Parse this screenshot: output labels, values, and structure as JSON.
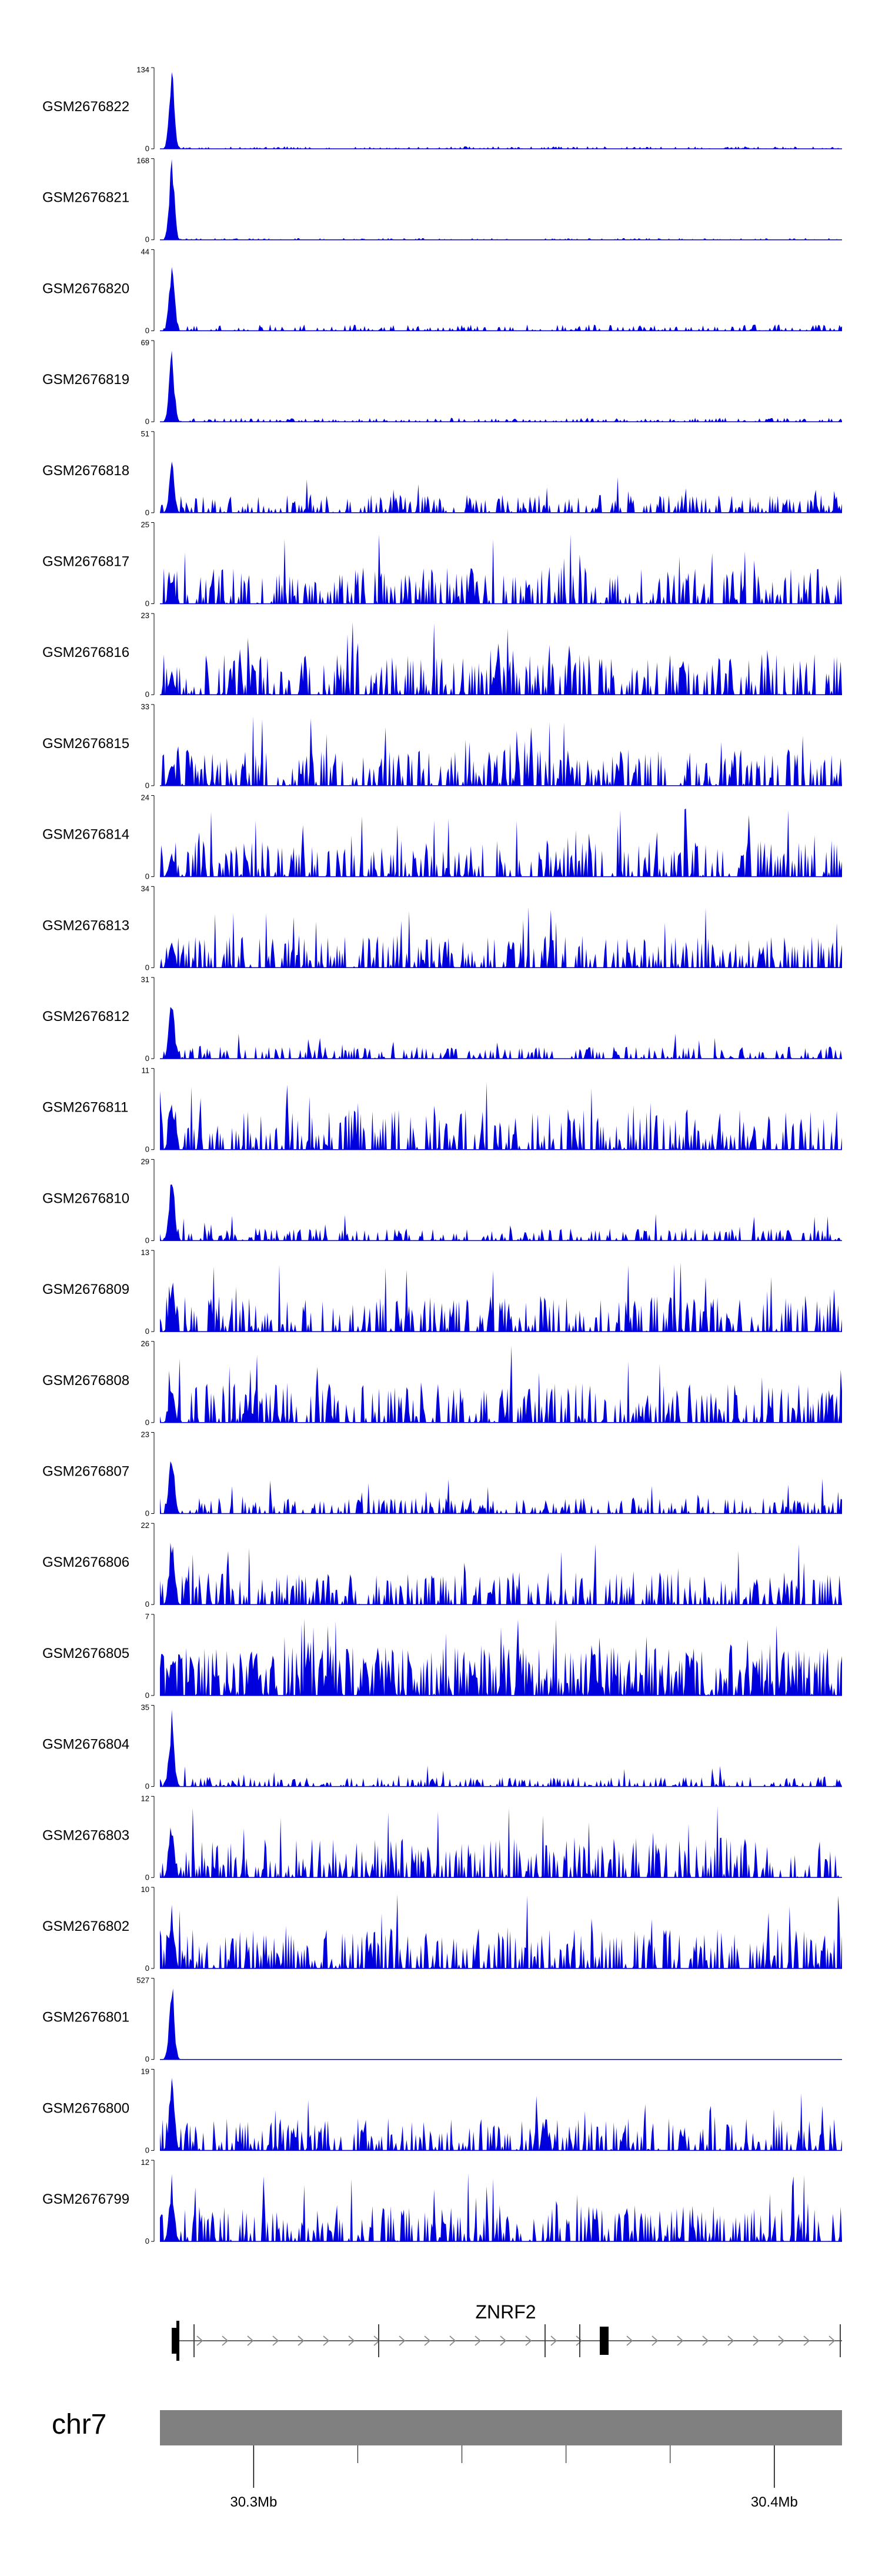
{
  "chart_data": {
    "type": "area",
    "fill_color": "#0000dd",
    "gene_color": "#000000",
    "chromosome_bar_color": "#808080",
    "tracks": [
      {
        "label": "GSM2676822",
        "ymax": 134,
        "ymin": 0
      },
      {
        "label": "GSM2676821",
        "ymax": 168,
        "ymin": 0
      },
      {
        "label": "GSM2676820",
        "ymax": 44,
        "ymin": 0
      },
      {
        "label": "GSM2676819",
        "ymax": 69,
        "ymin": 0
      },
      {
        "label": "GSM2676818",
        "ymax": 51,
        "ymin": 0
      },
      {
        "label": "GSM2676817",
        "ymax": 25,
        "ymin": 0
      },
      {
        "label": "GSM2676816",
        "ymax": 23,
        "ymin": 0
      },
      {
        "label": "GSM2676815",
        "ymax": 33,
        "ymin": 0
      },
      {
        "label": "GSM2676814",
        "ymax": 24,
        "ymin": 0
      },
      {
        "label": "GSM2676813",
        "ymax": 34,
        "ymin": 0
      },
      {
        "label": "GSM2676812",
        "ymax": 31,
        "ymin": 0
      },
      {
        "label": "GSM2676811",
        "ymax": 11,
        "ymin": 0
      },
      {
        "label": "GSM2676810",
        "ymax": 29,
        "ymin": 0
      },
      {
        "label": "GSM2676809",
        "ymax": 13,
        "ymin": 0
      },
      {
        "label": "GSM2676808",
        "ymax": 26,
        "ymin": 0
      },
      {
        "label": "GSM2676807",
        "ymax": 23,
        "ymin": 0
      },
      {
        "label": "GSM2676806",
        "ymax": 22,
        "ymin": 0
      },
      {
        "label": "GSM2676805",
        "ymax": 7,
        "ymin": 0
      },
      {
        "label": "GSM2676804",
        "ymax": 35,
        "ymin": 0
      },
      {
        "label": "GSM2676803",
        "ymax": 12,
        "ymin": 0
      },
      {
        "label": "GSM2676802",
        "ymax": 10,
        "ymin": 0
      },
      {
        "label": "GSM2676801",
        "ymax": 527,
        "ymin": 0
      },
      {
        "label": "GSM2676800",
        "ymax": 19,
        "ymin": 0
      },
      {
        "label": "GSM2676799",
        "ymax": 12,
        "ymin": 0
      }
    ],
    "gene": {
      "name": "ZNRF2",
      "strand": "+"
    },
    "chromosome": "chr7",
    "axis": {
      "range_mb": [
        30.282,
        30.413
      ],
      "major_ticks": [
        {
          "value": 30.3,
          "label": "30.3Mb"
        },
        {
          "value": 30.4,
          "label": "30.4Mb"
        }
      ],
      "minor_ticks": [
        30.32,
        30.34,
        30.36,
        30.38
      ]
    }
  }
}
